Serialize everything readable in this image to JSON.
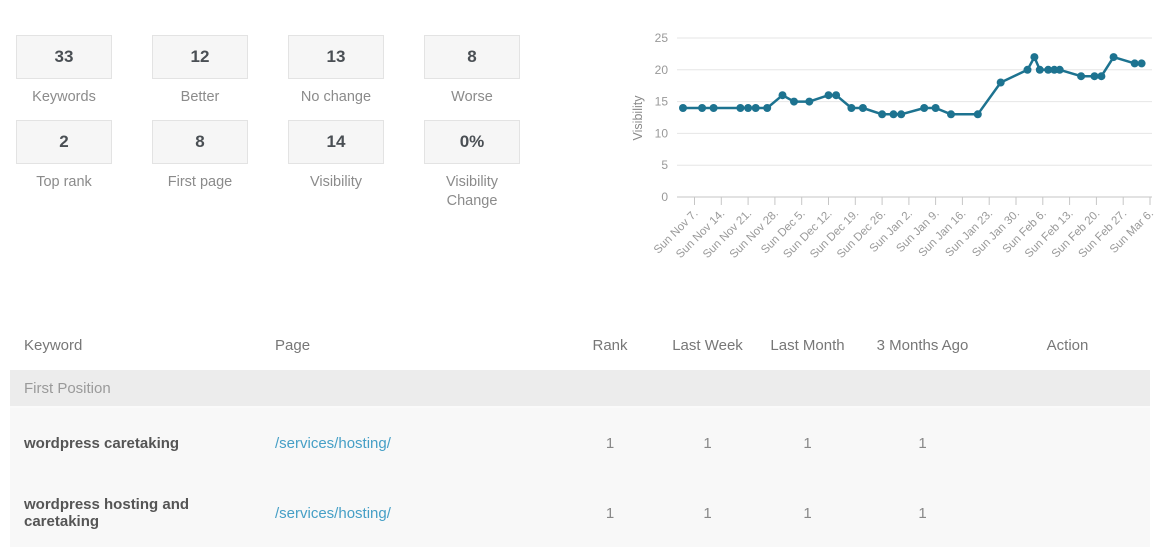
{
  "colors": {
    "accent_line": "#1d7390",
    "link": "#459fc6",
    "stat_box_bg": "#f6f6f6",
    "stat_box_border": "#e3e3e3",
    "section_row_bg": "#ececec",
    "row_bg": "#f8f8f8"
  },
  "stats": [
    {
      "value": "33",
      "label": "Keywords"
    },
    {
      "value": "12",
      "label": "Better"
    },
    {
      "value": "13",
      "label": "No change"
    },
    {
      "value": "8",
      "label": "Worse"
    },
    {
      "value": "2",
      "label": "Top rank"
    },
    {
      "value": "8",
      "label": "First page"
    },
    {
      "value": "14",
      "label": "Visibility"
    },
    {
      "value": "0%",
      "label": "Visibility Change"
    }
  ],
  "chart_data": {
    "type": "line",
    "title": "",
    "xlabel": "",
    "ylabel": "Visibility",
    "ylim": [
      0,
      25
    ],
    "yticks": [
      0,
      5,
      10,
      15,
      20,
      25
    ],
    "grid": true,
    "legend": "none",
    "x_tick_labels": [
      "Sun Nov 7.",
      "Sun Nov 14.",
      "Sun Nov 21.",
      "Sun Nov 28.",
      "Sun Dec 5.",
      "Sun Dec 12.",
      "Sun Dec 19.",
      "Sun Dec 26.",
      "Sun Jan 2.",
      "Sun Jan 9.",
      "Sun Jan 16.",
      "Sun Jan 23.",
      "Sun Jan 30.",
      "Sun Feb 6.",
      "Sun Feb 13.",
      "Sun Feb 20.",
      "Sun Feb 27.",
      "Sun Mar 6."
    ],
    "x_tick_days": [
      3,
      10,
      17,
      24,
      31,
      38,
      45,
      52,
      59,
      66,
      73,
      80,
      87,
      94,
      101,
      108,
      115,
      122
    ],
    "series": [
      {
        "name": "Visibility",
        "color": "#1d7390",
        "points": [
          [
            0,
            14
          ],
          [
            5,
            14
          ],
          [
            8,
            14
          ],
          [
            15,
            14
          ],
          [
            17,
            14
          ],
          [
            19,
            14
          ],
          [
            22,
            14
          ],
          [
            26,
            16
          ],
          [
            29,
            15
          ],
          [
            33,
            15
          ],
          [
            38,
            16
          ],
          [
            40,
            16
          ],
          [
            44,
            14
          ],
          [
            47,
            14
          ],
          [
            52,
            13
          ],
          [
            55,
            13
          ],
          [
            57,
            13
          ],
          [
            63,
            14
          ],
          [
            66,
            14
          ],
          [
            70,
            13
          ],
          [
            77,
            13
          ],
          [
            83,
            18
          ],
          [
            90,
            20
          ],
          [
            91.8,
            22
          ],
          [
            93.2,
            20
          ],
          [
            95.4,
            20
          ],
          [
            97,
            20
          ],
          [
            98.4,
            20
          ],
          [
            104,
            19
          ],
          [
            107.5,
            19
          ],
          [
            109.3,
            19
          ],
          [
            112.5,
            22
          ],
          [
            118,
            21
          ],
          [
            119.8,
            21
          ]
        ]
      }
    ]
  },
  "table": {
    "columns": [
      "Keyword",
      "Page",
      "Rank",
      "Last Week",
      "Last Month",
      "3 Months Ago",
      "Action"
    ],
    "section_header": "First Position",
    "rows": [
      {
        "keyword": "wordpress caretaking",
        "page": "/services/hosting/",
        "rank": "1",
        "last_week": "1",
        "last_month": "1",
        "three_months_ago": "1",
        "action": ""
      },
      {
        "keyword": "wordpress hosting and caretaking",
        "page": "/services/hosting/",
        "rank": "1",
        "last_week": "1",
        "last_month": "1",
        "three_months_ago": "1",
        "action": ""
      }
    ]
  }
}
